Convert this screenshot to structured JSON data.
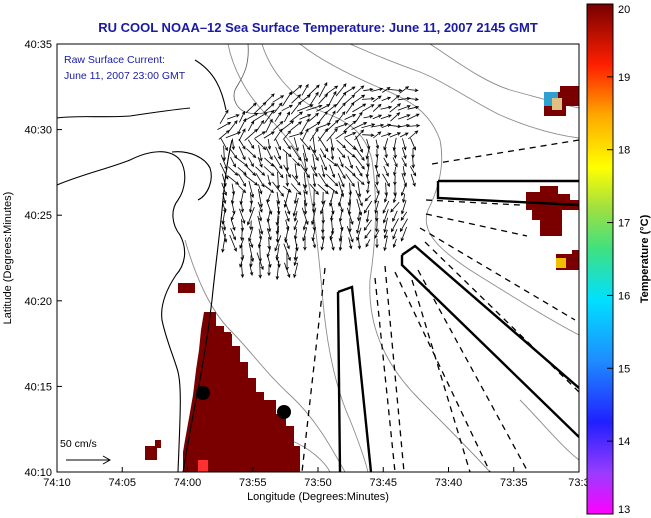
{
  "chart_data": {
    "type": "heatmap",
    "title": "RU COOL  NOAA–12  Sea Surface Temperature:  June 11, 2007 2145 GMT",
    "annotations": [
      "Raw Surface Current:",
      "June 11, 2007 23:00 GMT"
    ],
    "xlabel": "Longitude (Degrees:Minutes)",
    "ylabel": "Latitude (Degrees:Minutes)",
    "x_ticks": [
      "74:10",
      "74:05",
      "74:00",
      "73:55",
      "73:50",
      "73:45",
      "73:40",
      "73:35",
      "73:3"
    ],
    "y_ticks": [
      "40:10",
      "40:15",
      "40:20",
      "40:25",
      "40:30",
      "40:35"
    ],
    "xlim_minutes_west": [
      70,
      30
    ],
    "ylim_minutes_north": [
      10,
      35
    ],
    "colorbar": {
      "label": "Temperature (°C)",
      "range": [
        13,
        20
      ],
      "ticks": [
        "13",
        "14",
        "15",
        "16",
        "17",
        "18",
        "19",
        "20"
      ]
    },
    "scale_label": "50 cm/s",
    "grid": false
  },
  "colors": {
    "title": "#1a1aa6",
    "sst_warm": "#7a0000",
    "land_fill": "#ffffff",
    "contour": "#8c8c8c"
  }
}
